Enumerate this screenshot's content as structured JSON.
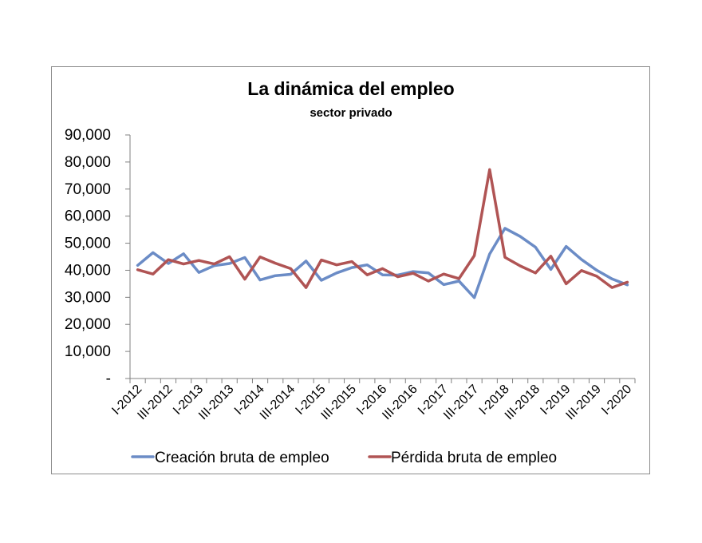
{
  "chart_data": {
    "type": "line",
    "title": "La dinámica del empleo",
    "subtitle": "sector privado",
    "xlabel": "",
    "ylabel": "",
    "ylim": [
      0,
      90000
    ],
    "yticks": [
      {
        "value": 0,
        "label": "-"
      },
      {
        "value": 10000,
        "label": "10,000"
      },
      {
        "value": 20000,
        "label": "20,000"
      },
      {
        "value": 30000,
        "label": "30,000"
      },
      {
        "value": 40000,
        "label": "40,000"
      },
      {
        "value": 50000,
        "label": "50,000"
      },
      {
        "value": 60000,
        "label": "60,000"
      },
      {
        "value": 70000,
        "label": "70,000"
      },
      {
        "value": 80000,
        "label": "80,000"
      },
      {
        "value": 90000,
        "label": "90,000"
      }
    ],
    "categories": [
      "I-2012",
      "II-2012",
      "III-2012",
      "IV-2012",
      "I-2013",
      "II-2013",
      "III-2013",
      "IV-2013",
      "I-2014",
      "II-2014",
      "III-2014",
      "IV-2014",
      "I-2015",
      "II-2015",
      "III-2015",
      "IV-2015",
      "I-2016",
      "II-2016",
      "III-2016",
      "IV-2016",
      "I-2017",
      "II-2017",
      "III-2017",
      "IV-2017",
      "I-2018",
      "II-2018",
      "III-2018",
      "IV-2018",
      "I-2019",
      "II-2019",
      "III-2019",
      "IV-2019",
      "I-2020"
    ],
    "xtick_labels": [
      "I-2012",
      "III-2012",
      "I-2013",
      "III-2013",
      "I-2014",
      "III-2014",
      "I-2015",
      "III-2015",
      "I-2016",
      "III-2016",
      "I-2017",
      "III-2017",
      "I-2018",
      "III-2018",
      "I-2019",
      "III-2019",
      "I-2020"
    ],
    "series": [
      {
        "name": "Creación bruta de empleo",
        "color": "#6b8cc6",
        "values": [
          41800,
          46500,
          42500,
          46100,
          39200,
          41700,
          42500,
          44700,
          36400,
          38000,
          38500,
          43400,
          36300,
          39000,
          41000,
          42000,
          38300,
          38200,
          39500,
          39000,
          34700,
          36000,
          29900,
          46000,
          55500,
          52500,
          48500,
          40300,
          48800,
          44000,
          40000,
          36800,
          34600
        ]
      },
      {
        "name": "Pérdida bruta de empleo",
        "color": "#b05454",
        "values": [
          40200,
          38600,
          43900,
          42300,
          43600,
          42300,
          45000,
          36700,
          44900,
          42600,
          40600,
          33600,
          43800,
          42000,
          43200,
          38300,
          40600,
          37600,
          38900,
          36000,
          38600,
          36900,
          45400,
          77200,
          44800,
          41600,
          39000,
          45200,
          35000,
          39900,
          37800,
          33600,
          35600
        ]
      }
    ],
    "grid": false,
    "legend_position": "bottom"
  }
}
